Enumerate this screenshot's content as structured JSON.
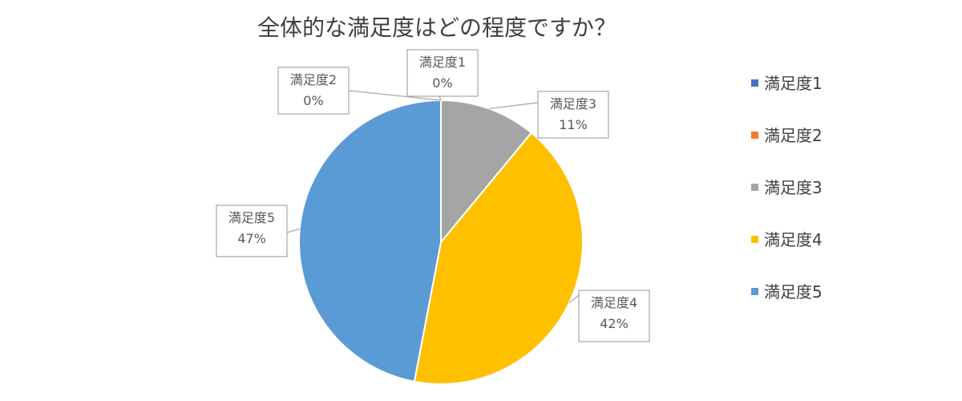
{
  "chart_data": {
    "type": "pie",
    "title": "全体的な満足度はどの程度ですか？",
    "categories": [
      "満足度1",
      "満足度2",
      "満足度3",
      "満足度4",
      "満足度5"
    ],
    "values": [
      0,
      0,
      11,
      42,
      47
    ],
    "value_labels": [
      "0%",
      "0%",
      "11%",
      "42%",
      "47%"
    ],
    "colors": [
      "#4472C4",
      "#ED7D31",
      "#A5A5A5",
      "#FFC000",
      "#5B9BD5"
    ],
    "legend_position": "right",
    "start_angle_deg": 0,
    "direction": "clockwise"
  }
}
